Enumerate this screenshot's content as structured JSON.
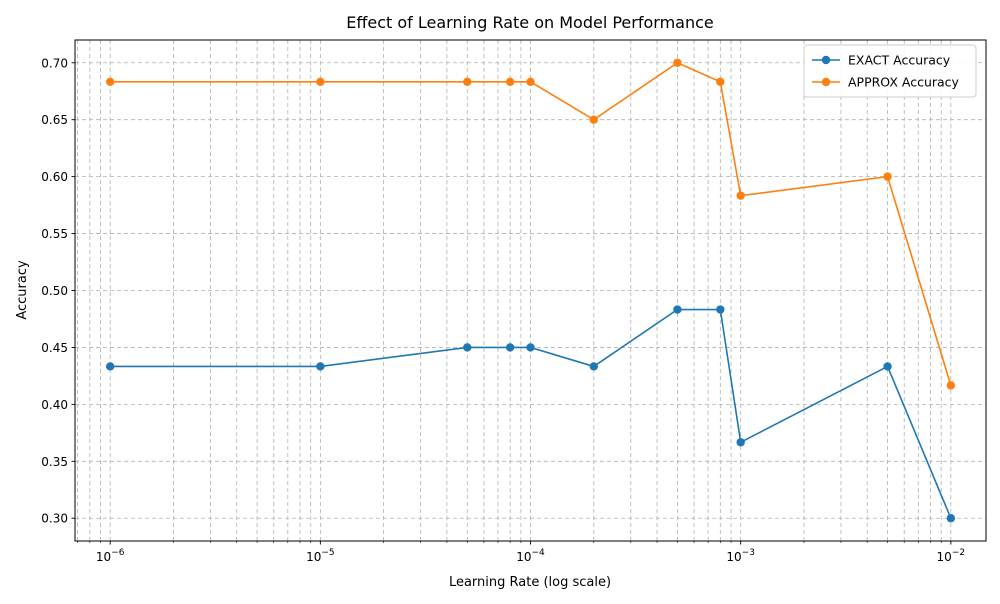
{
  "chart_data": {
    "type": "line",
    "title": "Effect of Learning Rate on Model Performance",
    "xlabel": "Learning Rate (log scale)",
    "ylabel": "Accuracy",
    "xscale": "log",
    "xlim": [
      6.8e-07,
      0.0147
    ],
    "ylim": [
      0.28,
      0.72
    ],
    "x_ticks": [
      {
        "value": 1e-06,
        "base": "10",
        "exp": "−6"
      },
      {
        "value": 1e-05,
        "base": "10",
        "exp": "−5"
      },
      {
        "value": 0.0001,
        "base": "10",
        "exp": "−4"
      },
      {
        "value": 0.001,
        "base": "10",
        "exp": "−3"
      },
      {
        "value": 0.01,
        "base": "10",
        "exp": "−2"
      }
    ],
    "y_ticks": [
      {
        "value": 0.3,
        "label": "0.30"
      },
      {
        "value": 0.35,
        "label": "0.35"
      },
      {
        "value": 0.4,
        "label": "0.40"
      },
      {
        "value": 0.45,
        "label": "0.45"
      },
      {
        "value": 0.5,
        "label": "0.50"
      },
      {
        "value": 0.55,
        "label": "0.55"
      },
      {
        "value": 0.6,
        "label": "0.60"
      },
      {
        "value": 0.65,
        "label": "0.65"
      },
      {
        "value": 0.7,
        "label": "0.70"
      }
    ],
    "grid": true,
    "legend_position": "top-right",
    "x": [
      1e-06,
      1e-05,
      5e-05,
      8e-05,
      0.0001,
      0.0002,
      0.0005,
      0.0008,
      0.001,
      0.005,
      0.01
    ],
    "series": [
      {
        "name": "EXACT Accuracy",
        "color": "#1f77b4",
        "values": [
          0.4333,
          0.4333,
          0.45,
          0.45,
          0.45,
          0.4333,
          0.4833,
          0.4833,
          0.3667,
          0.4333,
          0.3
        ]
      },
      {
        "name": "APPROX Accuracy",
        "color": "#ff7f0e",
        "values": [
          0.6833,
          0.6833,
          0.6833,
          0.6833,
          0.6833,
          0.65,
          0.7,
          0.6833,
          0.5833,
          0.6,
          0.4167
        ]
      }
    ]
  }
}
